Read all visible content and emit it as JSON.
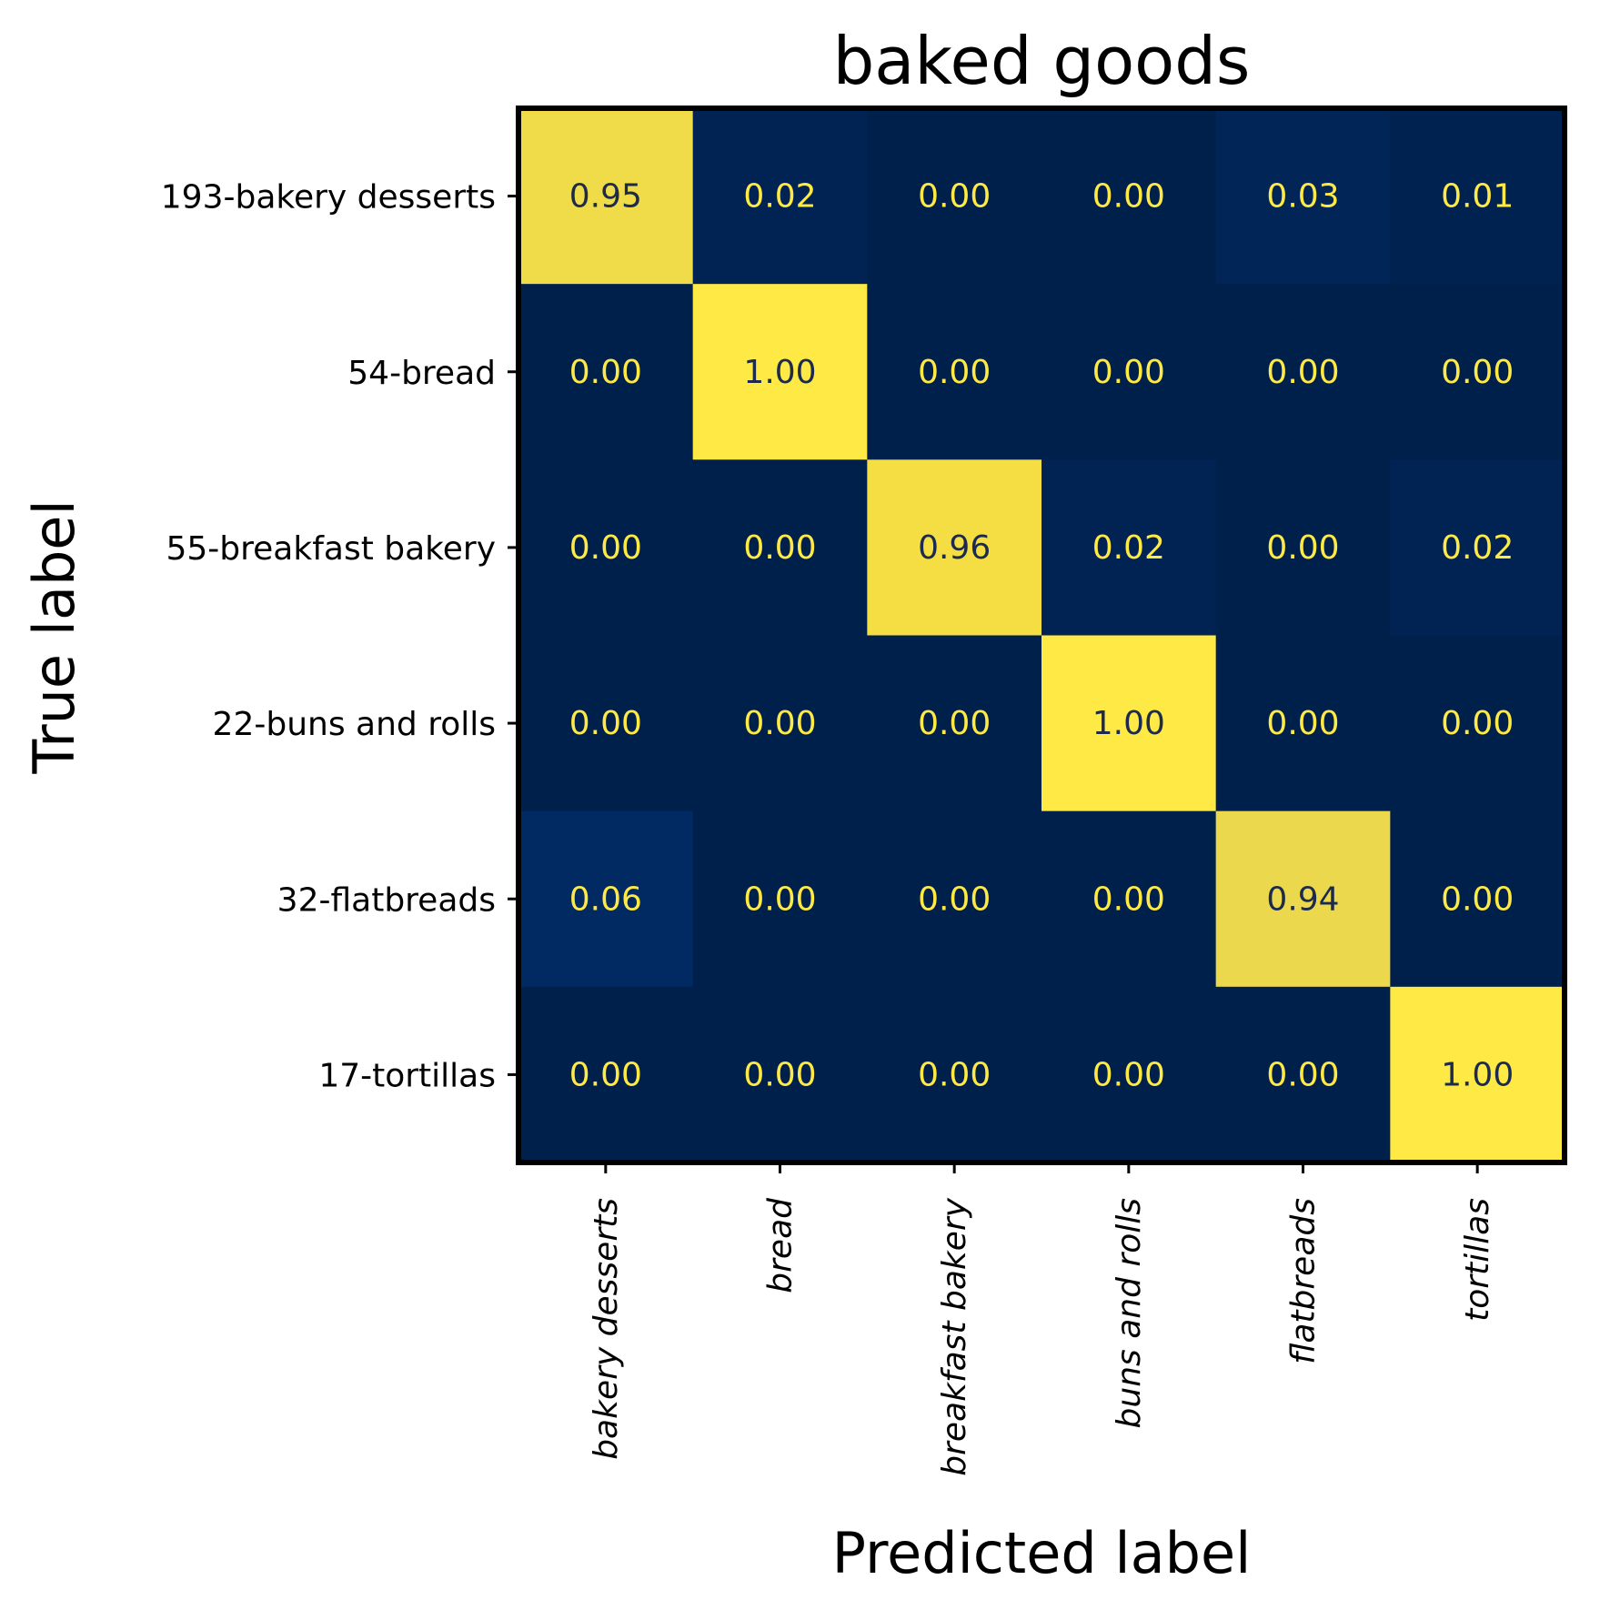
{
  "chart_data": {
    "type": "heatmap",
    "title": "baked goods",
    "xlabel": "Predicted label",
    "ylabel": "True label",
    "x_categories": [
      "bakery desserts",
      "bread",
      "breakfast bakery",
      "buns and rolls",
      "flatbreads",
      "tortillas"
    ],
    "y_categories": [
      "193-bakery desserts",
      "54-bread",
      "55-breakfast bakery",
      "22-buns and rolls",
      "32-flatbreads",
      "17-tortillas"
    ],
    "values": [
      [
        0.95,
        0.02,
        0.0,
        0.0,
        0.03,
        0.01
      ],
      [
        0.0,
        1.0,
        0.0,
        0.0,
        0.0,
        0.0
      ],
      [
        0.0,
        0.0,
        0.96,
        0.02,
        0.0,
        0.02
      ],
      [
        0.0,
        0.0,
        0.0,
        1.0,
        0.0,
        0.0
      ],
      [
        0.06,
        0.0,
        0.0,
        0.0,
        0.94,
        0.0
      ],
      [
        0.0,
        0.0,
        0.0,
        0.0,
        0.0,
        1.0
      ]
    ],
    "value_format": "0.00",
    "colormap": "cividis",
    "vmin": 0,
    "vmax": 1,
    "low_color": "#00204c",
    "high_color": "#ffe945",
    "text_on_dark": "#ffe945",
    "text_on_light": "#1c2b4d"
  }
}
